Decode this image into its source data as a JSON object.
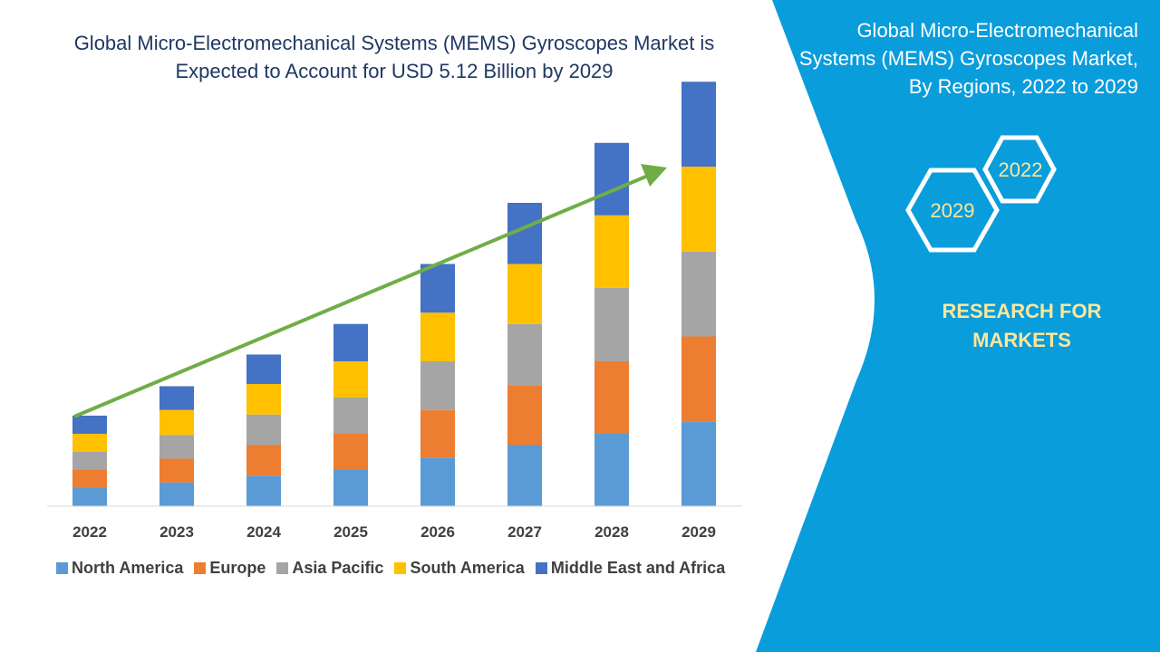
{
  "title": "Global Micro-Electromechanical Systems (MEMS) Gyroscopes Market is Expected to Account for USD 5.12 Billion by 2029",
  "side_panel": {
    "title": "Global Micro-Electromechanical Systems (MEMS) Gyroscopes Market, By Regions, 2022 to 2029",
    "hex_start": "2022",
    "hex_end": "2029",
    "brand": "RESEARCH FOR MARKETS",
    "background_color": "#0a9ddc",
    "accent_color": "#ffe699"
  },
  "chart_data": {
    "type": "bar",
    "stacked": true,
    "categories": [
      "2022",
      "2023",
      "2024",
      "2025",
      "2026",
      "2027",
      "2028",
      "2029"
    ],
    "series": [
      {
        "name": "North America",
        "color": "#5b9bd5",
        "values": [
          16,
          21,
          27,
          32,
          43,
          54,
          64,
          75
        ]
      },
      {
        "name": "Europe",
        "color": "#ed7d31",
        "values": [
          16,
          21,
          27,
          32,
          42,
          53,
          64,
          75
        ]
      },
      {
        "name": "Asia Pacific",
        "color": "#a5a5a5",
        "values": [
          16,
          21,
          27,
          32,
          43,
          54,
          65,
          75
        ]
      },
      {
        "name": "South America",
        "color": "#ffc000",
        "values": [
          16,
          22,
          27,
          32,
          43,
          53,
          64,
          75
        ]
      },
      {
        "name": "Middle East and Africa",
        "color": "#4472c4",
        "values": [
          16,
          21,
          26,
          33,
          43,
          54,
          64,
          75
        ]
      }
    ],
    "ylim": [
      0,
      400
    ],
    "y_axis_visible": false,
    "grid": false,
    "legend_position": "bottom",
    "trend_arrow": {
      "color": "#70ad47",
      "direction": "up-right"
    }
  }
}
